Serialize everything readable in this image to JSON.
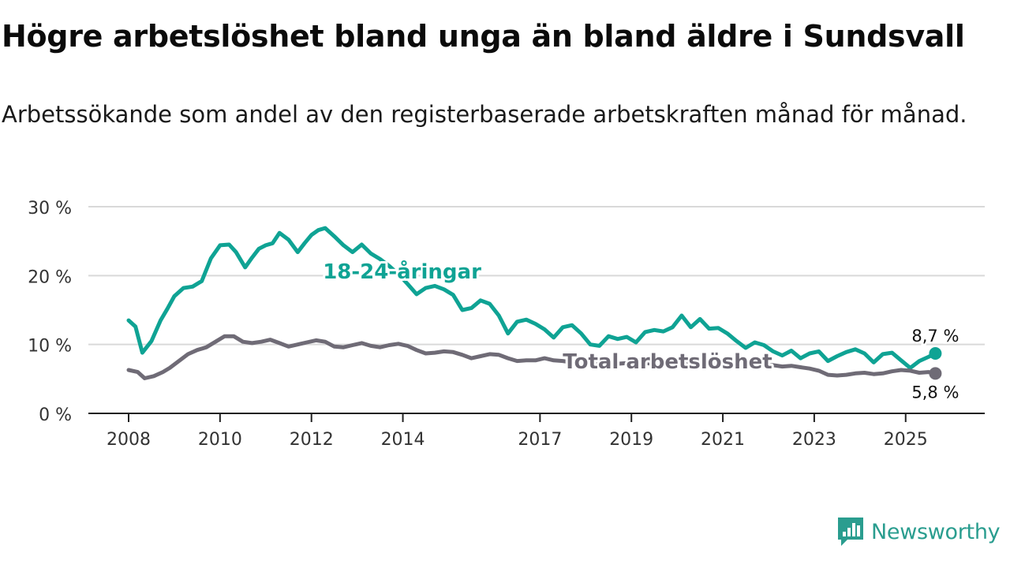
{
  "title": "Högre arbetslöshet bland unga än bland äldre i Sundsvall",
  "subtitle": "Arbetssökande som andel av den registerbaserade arbetskraften månad för månad.",
  "brand": {
    "name": "Newsworthy",
    "icon": "newsworthy-logo-icon"
  },
  "colors": {
    "youth": "#0fa394",
    "total": "#6f6b76",
    "grid": "#d9d9d9",
    "axis": "#222222"
  },
  "chart_data": {
    "type": "line",
    "title": "Högre arbetslöshet bland unga än bland äldre i Sundsvall",
    "xlabel": "",
    "ylabel": "",
    "xlim": [
      2008,
      2025.85
    ],
    "ylim": [
      0,
      30
    ],
    "grid": true,
    "x_ticks": [
      2008,
      2010,
      2012,
      2014,
      2017,
      2019,
      2021,
      2023,
      2025
    ],
    "x_tick_labels": [
      "2008",
      "2010",
      "2012",
      "2014",
      "2017",
      "2019",
      "2021",
      "2023",
      "2025"
    ],
    "y_ticks": [
      0,
      10,
      20,
      30
    ],
    "y_tick_labels": [
      "0 %",
      "10 %",
      "20 %",
      "30 %"
    ],
    "series": [
      {
        "name": "18-24-åringar",
        "key": "youth",
        "end_label": "8,7 %",
        "x": [
          2008.0,
          2008.15,
          2008.3,
          2008.5,
          2008.7,
          2008.85,
          2009.0,
          2009.2,
          2009.4,
          2009.6,
          2009.8,
          2010.0,
          2010.2,
          2010.35,
          2010.55,
          2010.7,
          2010.85,
          2011.0,
          2011.15,
          2011.3,
          2011.5,
          2011.7,
          2011.85,
          2012.0,
          2012.15,
          2012.3,
          2012.5,
          2012.7,
          2012.9,
          2013.1,
          2013.3,
          2013.5,
          2013.7,
          2013.9,
          2014.1,
          2014.3,
          2014.5,
          2014.7,
          2014.9,
          2015.1,
          2015.3,
          2015.5,
          2015.7,
          2015.9,
          2016.1,
          2016.3,
          2016.5,
          2016.7,
          2016.9,
          2017.1,
          2017.3,
          2017.5,
          2017.7,
          2017.9,
          2018.1,
          2018.3,
          2018.5,
          2018.7,
          2018.9,
          2019.1,
          2019.3,
          2019.5,
          2019.7,
          2019.9,
          2020.1,
          2020.3,
          2020.5,
          2020.7,
          2020.9,
          2021.1,
          2021.3,
          2021.5,
          2021.7,
          2021.9,
          2022.1,
          2022.3,
          2022.5,
          2022.7,
          2022.9,
          2023.1,
          2023.3,
          2023.5,
          2023.7,
          2023.9,
          2024.1,
          2024.3,
          2024.5,
          2024.7,
          2024.9,
          2025.1,
          2025.3,
          2025.5,
          2025.65
        ],
        "values": [
          13.5,
          12.6,
          8.8,
          10.5,
          13.5,
          15.2,
          17.0,
          18.2,
          18.4,
          19.2,
          22.5,
          24.4,
          24.5,
          23.4,
          21.2,
          22.6,
          23.9,
          24.4,
          24.7,
          26.2,
          25.2,
          23.4,
          24.7,
          25.9,
          26.6,
          26.9,
          25.7,
          24.4,
          23.4,
          24.5,
          23.2,
          22.4,
          21.4,
          20.2,
          18.8,
          17.3,
          18.2,
          18.5,
          18.0,
          17.2,
          15.0,
          15.3,
          16.4,
          15.9,
          14.2,
          11.6,
          13.3,
          13.6,
          13.0,
          12.2,
          11.0,
          12.5,
          12.8,
          11.6,
          10.0,
          9.8,
          11.2,
          10.8,
          11.1,
          10.3,
          11.8,
          12.1,
          11.9,
          12.5,
          14.2,
          12.5,
          13.7,
          12.3,
          12.4,
          11.6,
          10.5,
          9.5,
          10.3,
          9.9,
          9.0,
          8.4,
          9.1,
          8.0,
          8.7,
          9.0,
          7.6,
          8.3,
          8.9,
          9.3,
          8.7,
          7.4,
          8.6,
          8.8,
          7.7,
          6.6,
          7.6,
          8.2,
          8.7
        ]
      },
      {
        "name": "Total arbetslöshet",
        "key": "total",
        "end_label": "5,8 %",
        "x": [
          2008.0,
          2008.2,
          2008.35,
          2008.55,
          2008.75,
          2008.9,
          2009.1,
          2009.3,
          2009.5,
          2009.7,
          2009.9,
          2010.1,
          2010.3,
          2010.5,
          2010.7,
          2010.9,
          2011.1,
          2011.3,
          2011.5,
          2011.7,
          2011.9,
          2012.1,
          2012.3,
          2012.5,
          2012.7,
          2012.9,
          2013.1,
          2013.3,
          2013.5,
          2013.7,
          2013.9,
          2014.1,
          2014.3,
          2014.5,
          2014.7,
          2014.9,
          2015.1,
          2015.3,
          2015.5,
          2015.7,
          2015.9,
          2016.1,
          2016.3,
          2016.5,
          2016.7,
          2016.9,
          2017.1,
          2017.3,
          2017.5,
          2017.7,
          2017.9,
          2018.1,
          2018.3,
          2018.5,
          2018.7,
          2018.9,
          2019.1,
          2019.3,
          2019.5,
          2019.7,
          2019.9,
          2020.1,
          2020.3,
          2020.5,
          2020.7,
          2020.9,
          2021.1,
          2021.3,
          2021.5,
          2021.7,
          2021.9,
          2022.1,
          2022.3,
          2022.5,
          2022.7,
          2022.9,
          2023.1,
          2023.3,
          2023.5,
          2023.7,
          2023.9,
          2024.1,
          2024.3,
          2024.5,
          2024.7,
          2024.9,
          2025.1,
          2025.3,
          2025.5,
          2025.65
        ],
        "values": [
          6.3,
          6.0,
          5.1,
          5.4,
          6.0,
          6.6,
          7.6,
          8.6,
          9.2,
          9.6,
          10.4,
          11.2,
          11.2,
          10.4,
          10.2,
          10.4,
          10.7,
          10.2,
          9.7,
          10.0,
          10.3,
          10.6,
          10.4,
          9.7,
          9.6,
          9.9,
          10.2,
          9.8,
          9.6,
          9.9,
          10.1,
          9.8,
          9.2,
          8.7,
          8.8,
          9.0,
          8.9,
          8.5,
          8.0,
          8.3,
          8.6,
          8.5,
          8.0,
          7.6,
          7.7,
          7.7,
          8.0,
          7.7,
          7.6,
          7.4,
          7.3,
          7.3,
          7.2,
          7.1,
          7.2,
          7.3,
          7.4,
          7.3,
          7.2,
          7.3,
          7.2,
          7.4,
          7.5,
          7.6,
          7.4,
          7.5,
          7.4,
          7.3,
          7.2,
          7.3,
          7.1,
          7.0,
          6.8,
          6.9,
          6.7,
          6.5,
          6.2,
          5.6,
          5.5,
          5.6,
          5.8,
          5.9,
          5.7,
          5.8,
          6.1,
          6.3,
          6.2,
          5.9,
          6.0,
          5.8
        ]
      }
    ]
  }
}
